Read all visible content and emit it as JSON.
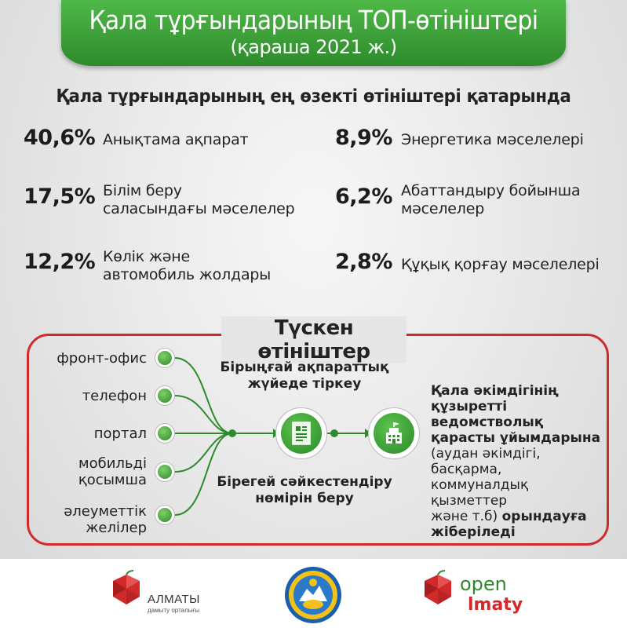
{
  "header": {
    "title": "Қала тұрғындарының ТОП-өтініштері",
    "subtitle": "(қараша 2021 ж.)"
  },
  "heading": "Қала тұрғындарының ең өзекті өтініштері қатарында",
  "stats": [
    {
      "percent": "40,6%",
      "label_lines": [
        "Анықтама ақпарат"
      ]
    },
    {
      "percent": "17,5%",
      "label_lines": [
        "Білім беру",
        "саласындағы мәселелер"
      ]
    },
    {
      "percent": "12,2%",
      "label_lines": [
        "Көлік және",
        "автомобиль жолдары"
      ]
    },
    {
      "percent": "8,9%",
      "label_lines": [
        "Энергетика мәселелері"
      ]
    },
    {
      "percent": "6,2%",
      "label_lines": [
        "Абаттандыру бойынша",
        "мәселелер"
      ]
    },
    {
      "percent": "2,8%",
      "label_lines": [
        "Құқық қорғау мәселелері"
      ]
    }
  ],
  "flow": {
    "title": "Түскен өтініштер",
    "channels": [
      {
        "lines": [
          "фронт-офис"
        ]
      },
      {
        "lines": [
          "телефон"
        ]
      },
      {
        "lines": [
          "портал"
        ]
      },
      {
        "lines": [
          "мобильді",
          "қосымша"
        ]
      },
      {
        "lines": [
          "әлеуметтік",
          "желілер"
        ]
      }
    ],
    "register_lines": [
      "Бірыңғай ақпараттық",
      "жүйеде тіркеу"
    ],
    "identifier_lines": [
      "Бірегей сәйкестендіру",
      "нөмірін беру"
    ],
    "result": {
      "bold_lines": [
        "Қала әкімдігінің",
        "құзыретті ведомстволық",
        "қарасты ұйымдарына"
      ],
      "normal_lines": [
        "(аудан әкімдігі, басқарма,",
        "коммуналдық қызметтер",
        "және т.б)"
      ],
      "bold_tail": "орындауға",
      "last_line": "жіберіледі"
    },
    "icons": [
      "document-icon",
      "building-icon"
    ]
  },
  "footer": {
    "almaty_name": "АЛМАТЫ",
    "almaty_sub": "дамыту орталығы",
    "open_word": "open",
    "imaty_word": "lmaty"
  },
  "colors": {
    "green": "#2e8b2c",
    "red": "#d12a2a",
    "text": "#222222"
  }
}
